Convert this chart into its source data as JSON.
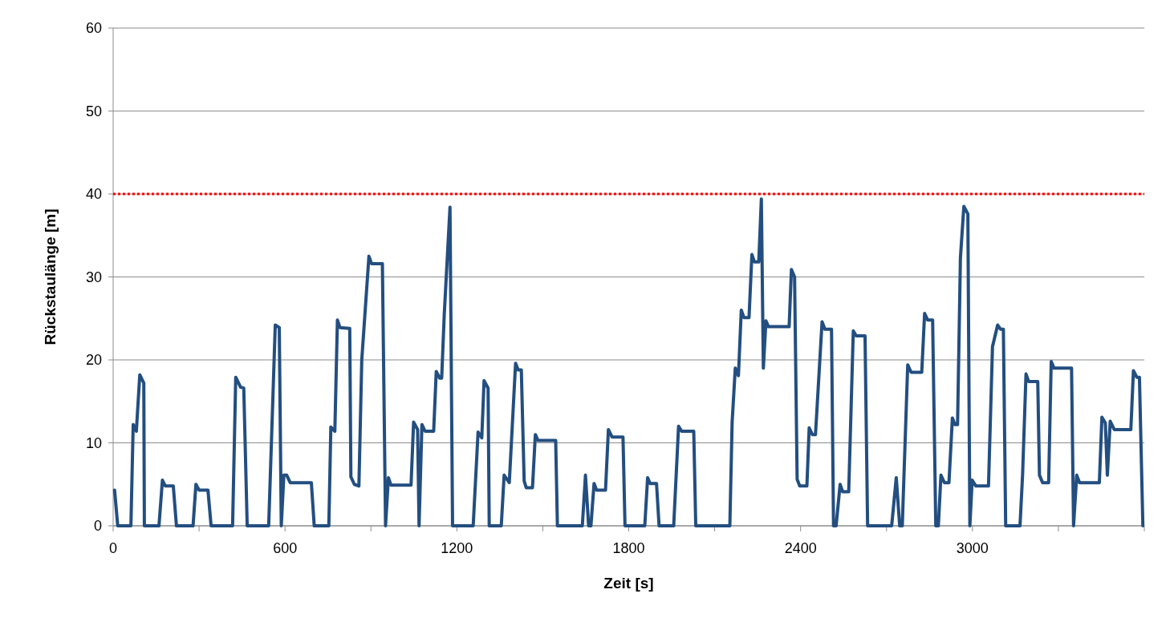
{
  "chart_data": {
    "type": "line",
    "xlabel": "Zeit [s]",
    "ylabel": "Rückstaulänge [m]",
    "xlim": [
      0,
      3600
    ],
    "ylim": [
      0,
      60
    ],
    "xticks": [
      0,
      {
        "value": 300,
        "label": null
      },
      600,
      {
        "value": 900,
        "label": null
      },
      1200,
      {
        "value": 1500,
        "label": null
      },
      1800,
      {
        "value": 2100,
        "label": null
      },
      2400,
      {
        "value": 2700,
        "label": null
      },
      3000,
      {
        "value": 3300,
        "label": null
      },
      {
        "value": 3600,
        "label": null
      }
    ],
    "yticks": [
      0,
      10,
      20,
      30,
      40,
      50,
      60
    ],
    "grid": "y",
    "marker": "none",
    "line_style": "solid",
    "ref_lines": [
      {
        "axis": "y",
        "value": 40,
        "color": "#ff0000",
        "line_style": "dotted"
      }
    ],
    "series": [
      {
        "color": "#234e80",
        "x": [
          5,
          16,
          62,
          70,
          81,
          93,
          107,
          109,
          160,
          172,
          182,
          210,
          221,
          279,
          289,
          300,
          331,
          342,
          417,
          428,
          445,
          456,
          468,
          543,
          566,
          580,
          587,
          596,
          606,
          618,
          692,
          702,
          753,
          760,
          774,
          783,
          792,
          826,
          830,
          842,
          858,
          868,
          893,
          902,
          940,
          951,
          961,
          970,
          1040,
          1049,
          1063,
          1068,
          1078,
          1089,
          1119,
          1128,
          1140,
          1147,
          1156,
          1176,
          1185,
          1257,
          1274,
          1287,
          1295,
          1309,
          1313,
          1355,
          1365,
          1383,
          1405,
          1414,
          1425,
          1435,
          1442,
          1464,
          1474,
          1483,
          1545,
          1551,
          1638,
          1649,
          1660,
          1668,
          1679,
          1688,
          1719,
          1729,
          1742,
          1780,
          1787,
          1856,
          1866,
          1875,
          1897,
          1906,
          1957,
          1974,
          1985,
          2027,
          2034,
          2153,
          2161,
          2172,
          2183,
          2193,
          2202,
          2220,
          2230,
          2239,
          2254,
          2263,
          2270,
          2279,
          2288,
          2360,
          2368,
          2379,
          2388,
          2397,
          2422,
          2430,
          2441,
          2452,
          2475,
          2485,
          2508,
          2515,
          2524,
          2538,
          2547,
          2568,
          2584,
          2594,
          2625,
          2634,
          2718,
          2734,
          2746,
          2755,
          2774,
          2786,
          2823,
          2833,
          2844,
          2861,
          2872,
          2881,
          2890,
          2902,
          2918,
          2930,
          2939,
          2948,
          2958,
          2970,
          2984,
          2991,
          2999,
          3012,
          3056,
          3070,
          3088,
          3098,
          3108,
          3116,
          3166,
          3175,
          3187,
          3196,
          3228,
          3234,
          3245,
          3266,
          3275,
          3285,
          3346,
          3353,
          3364,
          3374,
          3443,
          3452,
          3464,
          3471,
          3481,
          3495,
          3553,
          3562,
          3574,
          3583,
          3595
        ],
        "values": [
          4.3,
          0,
          0,
          12.2,
          11.4,
          18.2,
          17.2,
          0,
          0,
          5.5,
          4.8,
          4.8,
          0,
          0,
          5.0,
          4.3,
          4.3,
          0,
          0,
          17.9,
          16.7,
          16.6,
          0,
          0,
          24.2,
          23.9,
          0,
          6.1,
          6.1,
          5.2,
          5.2,
          0,
          0,
          11.9,
          11.4,
          24.8,
          23.9,
          23.8,
          5.9,
          5.0,
          4.8,
          20.0,
          32.5,
          31.6,
          31.6,
          0,
          5.8,
          4.9,
          4.9,
          12.5,
          11.6,
          0,
          12.2,
          11.4,
          11.4,
          18.6,
          17.8,
          17.8,
          25.5,
          38.4,
          0,
          0,
          11.3,
          10.6,
          17.5,
          16.6,
          0,
          0,
          6.1,
          5.2,
          19.6,
          18.8,
          18.8,
          5.4,
          4.6,
          4.6,
          11.0,
          10.3,
          10.3,
          0,
          0,
          6.1,
          0,
          0,
          5.1,
          4.3,
          4.3,
          11.6,
          10.7,
          10.7,
          0,
          0,
          5.8,
          5.1,
          5.1,
          0,
          0,
          12.0,
          11.4,
          11.4,
          0,
          0,
          12.5,
          19.0,
          18.1,
          26.0,
          25.1,
          25.1,
          32.7,
          31.8,
          31.8,
          39.4,
          19.0,
          24.7,
          24.0,
          24.0,
          30.9,
          30.0,
          5.6,
          4.8,
          4.8,
          11.8,
          11.0,
          11.0,
          24.6,
          23.7,
          23.7,
          0,
          0,
          5.0,
          4.1,
          4.1,
          23.5,
          22.9,
          22.9,
          0,
          0,
          5.8,
          0,
          0,
          19.4,
          18.5,
          18.5,
          25.6,
          24.8,
          24.8,
          0,
          0,
          6.1,
          5.2,
          5.2,
          13.0,
          12.2,
          12.2,
          32.3,
          38.5,
          37.6,
          0,
          5.5,
          4.8,
          4.8,
          21.6,
          24.2,
          23.7,
          23.7,
          0,
          0,
          6.1,
          18.3,
          17.4,
          17.4,
          6.1,
          5.2,
          5.2,
          19.8,
          19.0,
          19.0,
          0,
          6.1,
          5.2,
          5.2,
          13.1,
          12.4,
          6.1,
          12.6,
          11.6,
          11.6,
          18.7,
          17.9,
          17.9,
          0
        ]
      }
    ]
  }
}
